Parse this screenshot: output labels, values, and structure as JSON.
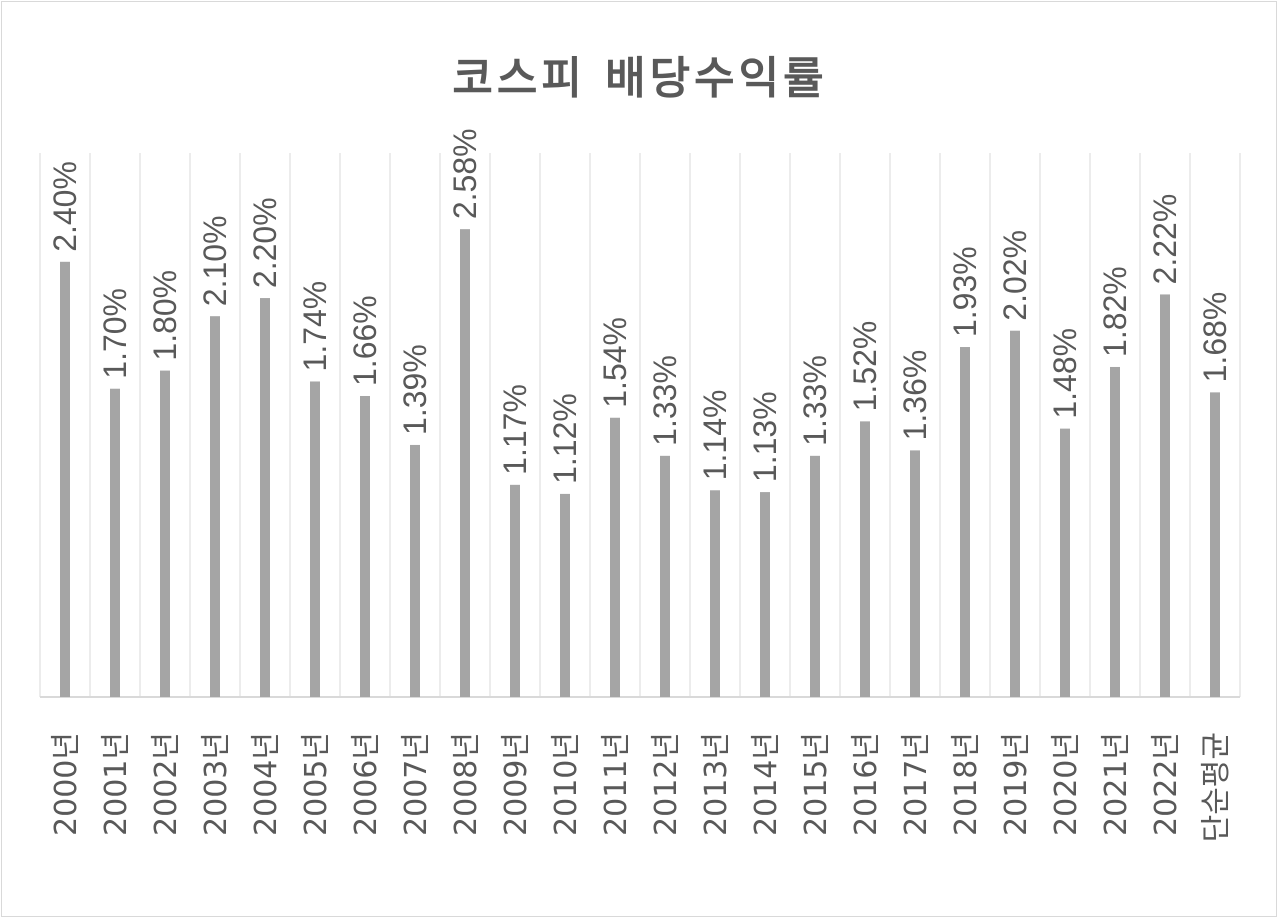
{
  "chart_data": {
    "type": "bar",
    "title": "코스피 배당수익률",
    "categories": [
      "2000년",
      "2001년",
      "2002년",
      "2003년",
      "2004년",
      "2005년",
      "2006년",
      "2007년",
      "2008년",
      "2009년",
      "2010년",
      "2011년",
      "2012년",
      "2013년",
      "2014년",
      "2015년",
      "2016년",
      "2017년",
      "2018년",
      "2019년",
      "2020년",
      "2021년",
      "2022년",
      "단순평균"
    ],
    "values": [
      2.4,
      1.7,
      1.8,
      2.1,
      2.2,
      1.74,
      1.66,
      1.39,
      2.58,
      1.17,
      1.12,
      1.54,
      1.33,
      1.14,
      1.13,
      1.33,
      1.52,
      1.36,
      1.93,
      2.02,
      1.48,
      1.82,
      2.22,
      1.68
    ],
    "labels": [
      "2.40%",
      "1.70%",
      "1.80%",
      "2.10%",
      "2.20%",
      "1.74%",
      "1.66%",
      "1.39%",
      "2.58%",
      "1.17%",
      "1.12%",
      "1.54%",
      "1.33%",
      "1.14%",
      "1.13%",
      "1.33%",
      "1.52%",
      "1.36%",
      "1.93%",
      "2.02%",
      "1.48%",
      "1.82%",
      "2.22%",
      "1.68%"
    ],
    "ylim": [
      0,
      3.0
    ],
    "bar_color": "#a5a5a5",
    "grid_color": "#d9d9d9",
    "grid": "vertical category separators",
    "legend": "none"
  }
}
